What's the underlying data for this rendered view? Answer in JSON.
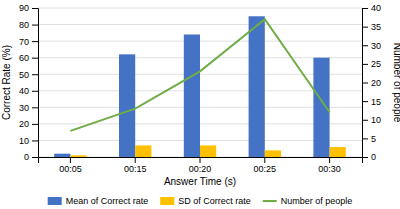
{
  "chart_data": {
    "type": "bar",
    "xlabel": "Answer Time (s)",
    "ylabel": "Correct Rate (%)",
    "y2label": "Number of people",
    "categories": [
      "00:05",
      "00:15",
      "00:20",
      "00:25",
      "00:30"
    ],
    "series": [
      {
        "name": "Mean of Correct rate",
        "color": "#4472c4",
        "values": [
          2,
          62,
          74,
          85,
          60
        ]
      },
      {
        "name": "SD of Correct rate",
        "color": "#ffc000",
        "values": [
          1,
          7,
          7,
          4,
          6
        ]
      },
      {
        "name": "Number of people",
        "color": "#70ad47",
        "type": "line",
        "axis": "y2",
        "values": [
          7,
          13,
          23,
          37,
          12
        ]
      }
    ],
    "ylim": [
      0,
      90
    ],
    "yticks": [
      0,
      10,
      20,
      30,
      40,
      50,
      60,
      70,
      80,
      90
    ],
    "y2lim": [
      0,
      40
    ],
    "y2ticks": [
      0,
      5,
      10,
      15,
      20,
      25,
      30,
      35,
      40
    ],
    "grid": true,
    "legend": "bottom"
  }
}
